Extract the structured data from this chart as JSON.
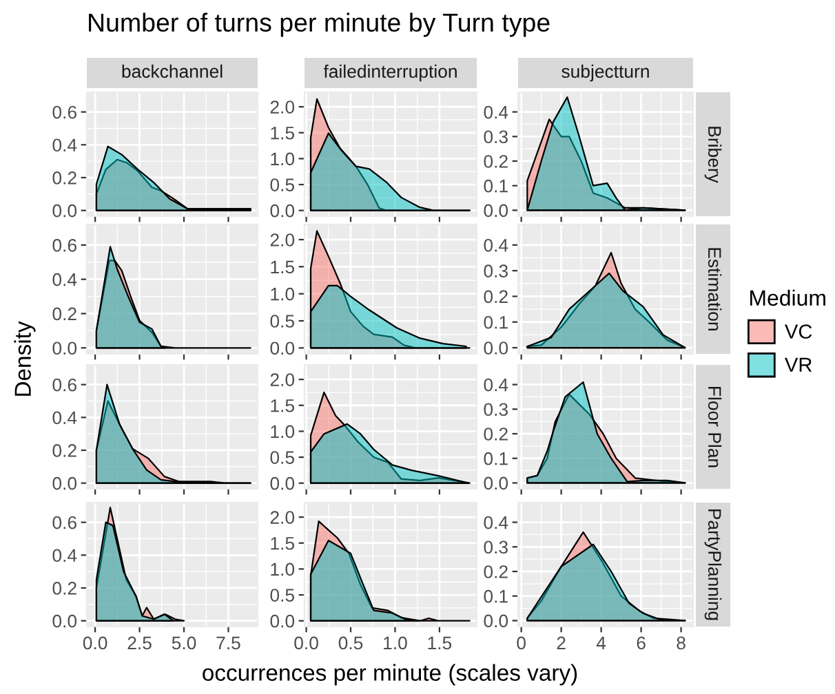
{
  "chart_data": [
    {
      "type": "area",
      "title": "Number of turns per minute by Turn type",
      "annotations": [
        "backchannel"
      ],
      "xlim": [
        -0.47,
        9.15
      ],
      "ylim": [
        -0.035,
        0.72
      ],
      "xticks": [
        0,
        2.5,
        5,
        7.5
      ],
      "yticks": [
        {
          "value": 0,
          "label": "0.0"
        },
        {
          "value": 0.2,
          "label": "0.2"
        },
        {
          "value": 0.4,
          "label": "0.4"
        },
        {
          "value": 0.6,
          "label": "0.6"
        }
      ],
      "grid": true,
      "tick_labels": "y",
      "series": [
        {
          "color": "#f8766d",
          "x": [
            0.07,
            0.6,
            1.24,
            1.8,
            2.4,
            3.2,
            3.7,
            4.3,
            5.2,
            6.5,
            8.75
          ],
          "values": [
            0.1,
            0.25,
            0.31,
            0.29,
            0.24,
            0.14,
            0.12,
            0.08,
            0.01,
            0.01,
            0.01
          ]
        },
        {
          "color": "#00bfc4",
          "x": [
            0.07,
            0.72,
            1.5,
            2.4,
            3.3,
            4.2,
            5.2,
            6.5,
            8.75
          ],
          "values": [
            0.16,
            0.39,
            0.34,
            0.25,
            0.17,
            0.07,
            0.01,
            0.01,
            0.01
          ]
        }
      ]
    },
    {
      "type": "area",
      "annotations": [
        "failedinterruption"
      ],
      "xlim": [
        -0.02,
        1.92
      ],
      "ylim": [
        -0.11,
        2.28
      ],
      "xticks": [
        0,
        0.5,
        1,
        1.5
      ],
      "yticks": [
        {
          "value": 0,
          "label": "0.0"
        },
        {
          "value": 0.5,
          "label": "0.5"
        },
        {
          "value": 1,
          "label": "1.0"
        },
        {
          "value": 1.5,
          "label": "1.5"
        },
        {
          "value": 2,
          "label": "2.0"
        }
      ],
      "grid": true,
      "tick_labels": "y",
      "series": [
        {
          "color": "#f8766d",
          "x": [
            0.05,
            0.12,
            0.25,
            0.38,
            0.56,
            0.69,
            0.82,
            0.9,
            1.84
          ],
          "values": [
            1.4,
            2.15,
            1.6,
            1.2,
            0.85,
            0.5,
            0.05,
            0,
            0
          ]
        },
        {
          "color": "#00bfc4",
          "x": [
            0.05,
            0.25,
            0.4,
            0.56,
            0.71,
            0.9,
            1.07,
            1.28,
            1.44,
            1.84
          ],
          "values": [
            0.73,
            1.49,
            1.15,
            0.85,
            0.8,
            0.55,
            0.25,
            0.06,
            0,
            0
          ]
        }
      ]
    },
    {
      "type": "area",
      "annotations": [
        "subjectturn",
        "Bribery"
      ],
      "xlim": [
        -0.16,
        8.6
      ],
      "ylim": [
        -0.024,
        0.48
      ],
      "xticks": [
        0,
        2,
        4,
        6,
        8
      ],
      "yticks": [
        {
          "value": 0,
          "label": "0.0"
        },
        {
          "value": 0.1,
          "label": "0.1"
        },
        {
          "value": 0.2,
          "label": "0.2"
        },
        {
          "value": 0.3,
          "label": "0.3"
        },
        {
          "value": 0.4,
          "label": "0.4"
        }
      ],
      "grid": true,
      "tick_labels": "y",
      "series": [
        {
          "color": "#f8766d",
          "x": [
            0.3,
            1.4,
            2.0,
            2.4,
            3.0,
            3.6,
            4.3,
            5.2,
            6.1,
            8.2
          ],
          "values": [
            0.12,
            0.37,
            0.3,
            0.3,
            0.2,
            0.07,
            0.05,
            0.01,
            0.01,
            0
          ]
        },
        {
          "color": "#00bfc4",
          "x": [
            0.3,
            1.0,
            1.6,
            2.3,
            2.9,
            3.6,
            4.3,
            4.75,
            5.2,
            6.1,
            8.2
          ],
          "values": [
            0,
            0.2,
            0.36,
            0.46,
            0.3,
            0.1,
            0.11,
            0.05,
            0,
            0.01,
            0
          ]
        }
      ]
    },
    {
      "type": "area",
      "ylabel": "Density",
      "xlim": [
        -0.47,
        9.15
      ],
      "ylim": [
        -0.035,
        0.72
      ],
      "xticks": [
        0,
        2.5,
        5,
        7.5
      ],
      "yticks": [
        {
          "value": 0,
          "label": "0.0"
        },
        {
          "value": 0.2,
          "label": "0.2"
        },
        {
          "value": 0.4,
          "label": "0.4"
        },
        {
          "value": 0.6,
          "label": "0.6"
        }
      ],
      "grid": true,
      "tick_labels": "y",
      "series": [
        {
          "color": "#f8766d",
          "x": [
            0.07,
            0.8,
            1.1,
            1.5,
            2.0,
            2.5,
            3.2,
            3.7,
            4.5,
            8.75
          ],
          "values": [
            0.1,
            0.51,
            0.51,
            0.45,
            0.3,
            0.16,
            0.09,
            0.01,
            0,
            0
          ]
        },
        {
          "color": "#00bfc4",
          "x": [
            0.07,
            0.85,
            1.24,
            1.9,
            2.5,
            3.2,
            3.7,
            3.95
          ],
          "values": [
            0.1,
            0.59,
            0.46,
            0.29,
            0.15,
            0.11,
            0.01,
            0
          ]
        }
      ]
    },
    {
      "type": "area",
      "xlim": [
        -0.02,
        1.92
      ],
      "ylim": [
        -0.11,
        2.28
      ],
      "xticks": [
        0,
        0.5,
        1,
        1.5
      ],
      "yticks": [
        {
          "value": 0,
          "label": "0.0"
        },
        {
          "value": 0.5,
          "label": "0.5"
        },
        {
          "value": 1,
          "label": "1.0"
        },
        {
          "value": 1.5,
          "label": "1.5"
        },
        {
          "value": 2,
          "label": "2.0"
        }
      ],
      "grid": true,
      "tick_labels": "y",
      "series": [
        {
          "color": "#f8766d",
          "x": [
            0.05,
            0.12,
            0.25,
            0.38,
            0.5,
            0.64,
            0.76,
            0.97,
            1.1,
            1.23,
            1.84
          ],
          "values": [
            1.47,
            2.16,
            1.69,
            1.2,
            0.67,
            0.4,
            0.25,
            0.2,
            0.05,
            0,
            0
          ]
        },
        {
          "color": "#00bfc4",
          "x": [
            0.05,
            0.25,
            0.35,
            0.5,
            0.71,
            1.02,
            1.28,
            1.54,
            1.8
          ],
          "values": [
            0.67,
            1.15,
            1.15,
            0.95,
            0.7,
            0.37,
            0.18,
            0.08,
            0.03
          ]
        }
      ]
    },
    {
      "type": "area",
      "annotations": [
        "Estimation"
      ],
      "legend": "right",
      "legend_title": "Medium",
      "xlim": [
        -0.16,
        8.6
      ],
      "ylim": [
        -0.024,
        0.48
      ],
      "xticks": [
        0,
        2,
        4,
        6,
        8
      ],
      "yticks": [
        {
          "value": 0,
          "label": "0.0"
        },
        {
          "value": 0.1,
          "label": "0.1"
        },
        {
          "value": 0.2,
          "label": "0.2"
        },
        {
          "value": 0.3,
          "label": "0.3"
        },
        {
          "value": 0.4,
          "label": "0.4"
        }
      ],
      "grid": true,
      "tick_labels": "y",
      "series": [
        {
          "name": "VC",
          "color": "#f8766d",
          "x": [
            0.3,
            1.0,
            2.0,
            2.9,
            3.7,
            4.5,
            5.0,
            5.7,
            6.4,
            7.3,
            8.2
          ],
          "values": [
            0.005,
            0.01,
            0.08,
            0.17,
            0.24,
            0.37,
            0.25,
            0.15,
            0.1,
            0.03,
            0
          ]
        },
        {
          "name": "VR",
          "color": "#00bfc4",
          "x": [
            0.3,
            1.5,
            2.4,
            3.4,
            4.4,
            5.1,
            6.1,
            7.1,
            8.2
          ],
          "values": [
            0.005,
            0.04,
            0.15,
            0.22,
            0.29,
            0.22,
            0.16,
            0.05,
            0
          ]
        }
      ]
    },
    {
      "type": "area",
      "xlim": [
        -0.47,
        9.15
      ],
      "ylim": [
        -0.035,
        0.72
      ],
      "xticks": [
        0,
        2.5,
        5,
        7.5
      ],
      "yticks": [
        {
          "value": 0,
          "label": "0.0"
        },
        {
          "value": 0.2,
          "label": "0.2"
        },
        {
          "value": 0.4,
          "label": "0.4"
        },
        {
          "value": 0.6,
          "label": "0.6"
        }
      ],
      "grid": true,
      "tick_labels": "y",
      "series": [
        {
          "color": "#f8766d",
          "x": [
            0.07,
            0.72,
            1.5,
            2.1,
            3.0,
            3.9,
            4.7,
            5.5,
            6.5,
            7.3,
            8.75
          ],
          "values": [
            0.2,
            0.5,
            0.33,
            0.21,
            0.15,
            0.04,
            0.01,
            0.01,
            0.01,
            0,
            0
          ]
        },
        {
          "color": "#00bfc4",
          "x": [
            0.07,
            0.67,
            1.37,
            2.1,
            2.9,
            3.7,
            4.5,
            5.5,
            8.75
          ],
          "values": [
            0.2,
            0.6,
            0.36,
            0.21,
            0.08,
            0.02,
            0.01,
            0,
            0
          ]
        }
      ]
    },
    {
      "type": "area",
      "xlim": [
        -0.02,
        1.92
      ],
      "ylim": [
        -0.11,
        2.28
      ],
      "xticks": [
        0,
        0.5,
        1,
        1.5
      ],
      "yticks": [
        {
          "value": 0,
          "label": "0.0"
        },
        {
          "value": 0.5,
          "label": "0.5"
        },
        {
          "value": 1,
          "label": "1.0"
        },
        {
          "value": 1.5,
          "label": "1.5"
        },
        {
          "value": 2,
          "label": "2.0"
        }
      ],
      "grid": true,
      "tick_labels": "y",
      "series": [
        {
          "color": "#f8766d",
          "x": [
            0.05,
            0.2,
            0.33,
            0.43,
            0.58,
            0.76,
            0.92,
            1.07,
            1.28,
            1.49,
            1.84
          ],
          "values": [
            0.92,
            1.75,
            1.3,
            1.12,
            0.8,
            0.5,
            0.4,
            0.08,
            0.05,
            0.1,
            0
          ]
        },
        {
          "color": "#00bfc4",
          "x": [
            0.05,
            0.2,
            0.46,
            0.61,
            0.76,
            0.97,
            1.18,
            1.49,
            1.83
          ],
          "values": [
            0.6,
            0.95,
            1.14,
            0.95,
            0.65,
            0.35,
            0.25,
            0.14,
            0
          ]
        }
      ]
    },
    {
      "type": "area",
      "annotations": [
        "Floor Plan"
      ],
      "xlim": [
        -0.16,
        8.6
      ],
      "ylim": [
        -0.024,
        0.48
      ],
      "xticks": [
        0,
        2,
        4,
        6,
        8
      ],
      "yticks": [
        {
          "value": 0,
          "label": "0.0"
        },
        {
          "value": 0.1,
          "label": "0.1"
        },
        {
          "value": 0.2,
          "label": "0.2"
        },
        {
          "value": 0.3,
          "label": "0.3"
        },
        {
          "value": 0.4,
          "label": "0.4"
        }
      ],
      "grid": true,
      "tick_labels": "y",
      "series": [
        {
          "color": "#f8766d",
          "x": [
            0.3,
            0.8,
            1.3,
            1.7,
            2.4,
            3.4,
            4.1,
            4.75,
            5.7,
            7.3,
            8.2
          ],
          "values": [
            0.02,
            0.03,
            0.1,
            0.25,
            0.36,
            0.28,
            0.2,
            0.1,
            0.02,
            0.005,
            0
          ]
        },
        {
          "color": "#00bfc4",
          "x": [
            0.3,
            0.8,
            1.3,
            1.6,
            2.2,
            3.1,
            3.8,
            4.5,
            5.3,
            6.1,
            7.3,
            8.2
          ],
          "values": [
            0.02,
            0.03,
            0.13,
            0.21,
            0.35,
            0.41,
            0.2,
            0.1,
            0.005,
            0.01,
            0.01,
            0
          ]
        }
      ]
    },
    {
      "type": "area",
      "xlim": [
        -0.47,
        9.15
      ],
      "ylim": [
        -0.035,
        0.72
      ],
      "xticks": [
        {
          "value": 0,
          "label": "0.0"
        },
        {
          "value": 2.5,
          "label": "2.5"
        },
        {
          "value": 5,
          "label": "5.0"
        },
        {
          "value": 7.5,
          "label": "7.5"
        }
      ],
      "yticks": [
        {
          "value": 0,
          "label": "0.0"
        },
        {
          "value": 0.2,
          "label": "0.2"
        },
        {
          "value": 0.4,
          "label": "0.4"
        },
        {
          "value": 0.6,
          "label": "0.6"
        }
      ],
      "grid": true,
      "series": [
        {
          "color": "#f8766d",
          "x": [
            0.07,
            0.85,
            1.24,
            1.75,
            2.3,
            2.65,
            2.9,
            3.3,
            3.95,
            4.5,
            5.0
          ],
          "values": [
            0.2,
            0.69,
            0.5,
            0.25,
            0.15,
            0.03,
            0.08,
            0.01,
            0.04,
            0.01,
            0
          ]
        },
        {
          "color": "#00bfc4",
          "x": [
            0.07,
            0.6,
            1.0,
            1.6,
            2.3,
            2.65,
            3.3,
            3.9,
            4.4
          ],
          "values": [
            0.25,
            0.6,
            0.58,
            0.3,
            0.15,
            0.03,
            0.01,
            0.04,
            0
          ]
        }
      ]
    },
    {
      "type": "area",
      "xlabel": "occurrences per minute (scales vary)",
      "xlim": [
        -0.02,
        1.92
      ],
      "ylim": [
        -0.11,
        2.28
      ],
      "xticks": [
        {
          "value": 0,
          "label": "0.0"
        },
        {
          "value": 0.5,
          "label": "0.5"
        },
        {
          "value": 1,
          "label": "1.0"
        },
        {
          "value": 1.5,
          "label": "1.5"
        }
      ],
      "yticks": [
        {
          "value": 0,
          "label": "0.0"
        },
        {
          "value": 0.5,
          "label": "0.5"
        },
        {
          "value": 1,
          "label": "1.0"
        },
        {
          "value": 1.5,
          "label": "1.5"
        },
        {
          "value": 2,
          "label": "2.0"
        }
      ],
      "grid": true,
      "series": [
        {
          "color": "#f8766d",
          "x": [
            0.05,
            0.14,
            0.25,
            0.35,
            0.48,
            0.61,
            0.74,
            0.92,
            1.07,
            1.28,
            1.38,
            1.49,
            1.84
          ],
          "values": [
            0.87,
            1.92,
            1.75,
            1.6,
            1.3,
            0.7,
            0.25,
            0.2,
            0.06,
            0,
            0.05,
            0,
            0
          ]
        },
        {
          "color": "#00bfc4",
          "x": [
            0.05,
            0.25,
            0.4,
            0.5,
            0.64,
            0.76,
            0.97,
            1.13,
            1.28
          ],
          "values": [
            0.9,
            1.55,
            1.4,
            1.3,
            0.7,
            0.2,
            0.15,
            0.02,
            0
          ]
        }
      ]
    },
    {
      "type": "area",
      "annotations": [
        "PartyPlanning"
      ],
      "xlim": [
        -0.16,
        8.6
      ],
      "ylim": [
        -0.024,
        0.48
      ],
      "xticks": [
        0,
        2,
        4,
        6,
        8
      ],
      "yticks": [
        {
          "value": 0,
          "label": "0.0"
        },
        {
          "value": 0.1,
          "label": "0.1"
        },
        {
          "value": 0.2,
          "label": "0.2"
        },
        {
          "value": 0.3,
          "label": "0.3"
        },
        {
          "value": 0.4,
          "label": "0.4"
        }
      ],
      "grid": true,
      "series": [
        {
          "color": "#f8766d",
          "x": [
            0.3,
            1.0,
            2.0,
            3.1,
            4.05,
            5.0,
            5.9,
            6.6,
            8.2
          ],
          "values": [
            0.01,
            0.08,
            0.22,
            0.36,
            0.24,
            0.1,
            0.04,
            0.01,
            0
          ]
        },
        {
          "color": "#00bfc4",
          "x": [
            0.3,
            2.0,
            3.6,
            4.5,
            5.4,
            6.1,
            7.1,
            8.2
          ],
          "values": [
            0.01,
            0.22,
            0.31,
            0.2,
            0.07,
            0.03,
            0,
            0
          ]
        }
      ]
    }
  ]
}
